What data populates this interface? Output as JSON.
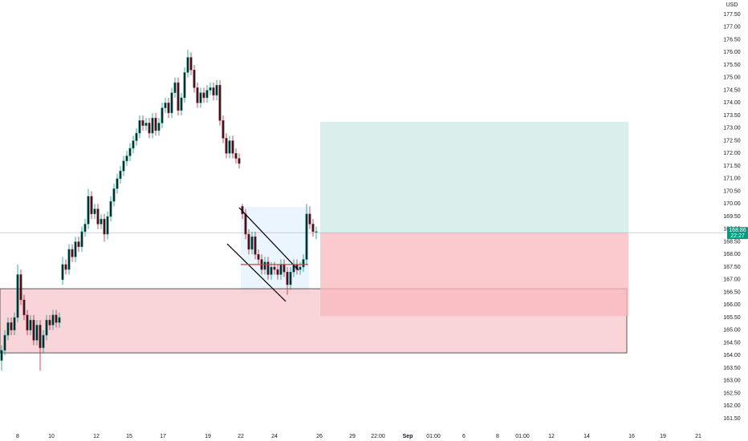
{
  "chart_data": {
    "type": "candlestick",
    "currency": "USD",
    "current_price": 168.86,
    "countdown": "22:27",
    "up_color": "#089981",
    "down_color": "#b22833",
    "xlim": [
      -0.5,
      223.5
    ],
    "ylim": [
      161.25,
      177.75
    ],
    "xticks": [
      {
        "value": 5,
        "label": "8"
      },
      {
        "value": 15.5,
        "label": "10"
      },
      {
        "value": 29.5,
        "label": "12"
      },
      {
        "value": 39.75,
        "label": "15"
      },
      {
        "value": 50.25,
        "label": "17"
      },
      {
        "value": 64.25,
        "label": "19"
      },
      {
        "value": 74.5,
        "label": "22"
      },
      {
        "value": 85,
        "label": "24"
      },
      {
        "value": 99,
        "label": "26"
      },
      {
        "value": 109.25,
        "label": "29"
      },
      {
        "value": 117.25,
        "label": "22:00"
      },
      {
        "value": 126.5,
        "label": "Sep"
      },
      {
        "value": 134.5,
        "label": "01:00"
      },
      {
        "value": 144,
        "label": "6"
      },
      {
        "value": 154.5,
        "label": "8"
      },
      {
        "value": 162.25,
        "label": "01:00"
      },
      {
        "value": 171.25,
        "label": "12"
      },
      {
        "value": 182.25,
        "label": "14"
      },
      {
        "value": 196.25,
        "label": "16"
      },
      {
        "value": 206,
        "label": "19"
      },
      {
        "value": 217,
        "label": "21"
      }
    ],
    "yticks": [
      {
        "value": 161.5,
        "label": "161.50"
      },
      {
        "value": 162,
        "label": "162.00"
      },
      {
        "value": 162.5,
        "label": "162.50"
      },
      {
        "value": 163,
        "label": "163.00"
      },
      {
        "value": 163.5,
        "label": "163.50"
      },
      {
        "value": 164,
        "label": "164.00"
      },
      {
        "value": 164.5,
        "label": "164.50"
      },
      {
        "value": 165,
        "label": "165.00"
      },
      {
        "value": 165.5,
        "label": "165.50"
      },
      {
        "value": 166,
        "label": "166.00"
      },
      {
        "value": 166.5,
        "label": "166.50"
      },
      {
        "value": 167,
        "label": "167.00"
      },
      {
        "value": 167.5,
        "label": "167.50"
      },
      {
        "value": 168,
        "label": "168.00"
      },
      {
        "value": 168.5,
        "label": "168.50"
      },
      {
        "value": 169,
        "label": "169.00"
      },
      {
        "value": 169.5,
        "label": "169.50"
      },
      {
        "value": 170,
        "label": "170.00"
      },
      {
        "value": 170.5,
        "label": "170.50"
      },
      {
        "value": 171,
        "label": "171.00"
      },
      {
        "value": 171.5,
        "label": "171.50"
      },
      {
        "value": 172,
        "label": "172.00"
      },
      {
        "value": 172.5,
        "label": "172.50"
      },
      {
        "value": 173,
        "label": "173.00"
      },
      {
        "value": 173.5,
        "label": "173.50"
      },
      {
        "value": 174,
        "label": "174.00"
      },
      {
        "value": 174.5,
        "label": "174.50"
      },
      {
        "value": 175,
        "label": "175.00"
      },
      {
        "value": 175.5,
        "label": "175.50"
      },
      {
        "value": 176,
        "label": "176.00"
      },
      {
        "value": 176.5,
        "label": "176.50"
      },
      {
        "value": 177,
        "label": "177.00"
      },
      {
        "value": 177.5,
        "label": "177.50"
      }
    ],
    "open": [
      163.8,
      164.2,
      164.8,
      165.3,
      165.0,
      165.5,
      167.2,
      166.2,
      165.6,
      165.0,
      165.4,
      164.6,
      165.2,
      164.3,
      164.8,
      165.4,
      165.2,
      165.6,
      165.3,
      167.0,
      167.6,
      167.4,
      168.2,
      167.9,
      168.5,
      168.3,
      168.9,
      169.2,
      170.3,
      169.6,
      169.8,
      169.2,
      169.4,
      168.8,
      169.5,
      170.1,
      170.6,
      171.0,
      171.3,
      171.7,
      171.9,
      172.2,
      172.5,
      172.8,
      173.3,
      173.1,
      173.2,
      172.8,
      173.4,
      172.9,
      173.2,
      173.8,
      174.0,
      173.6,
      174.4,
      174.8,
      173.7,
      174.2,
      175.2,
      175.8,
      175.3,
      174.6,
      174.0,
      174.4,
      174.2,
      174.5,
      174.6,
      174.3,
      174.7,
      173.3,
      172.6,
      172.0,
      172.5,
      172.0,
      171.8,
      169.9,
      169.6,
      168.8,
      168.2,
      168.7,
      168.0,
      167.8,
      167.4,
      167.7,
      167.2,
      167.5,
      167.4,
      167.2,
      167.6,
      167.3,
      166.8,
      167.3,
      167.6,
      167.4,
      167.5,
      167.8,
      169.6,
      169.2,
      168.9
    ],
    "high": [
      164.4,
      165.0,
      165.5,
      165.5,
      165.7,
      167.6,
      167.4,
      166.4,
      165.8,
      165.6,
      165.6,
      165.4,
      165.4,
      165.0,
      165.6,
      165.6,
      165.8,
      165.8,
      165.7,
      167.9,
      167.8,
      168.4,
      168.4,
      168.7,
      168.7,
      169.1,
      169.4,
      170.6,
      170.5,
      170.0,
      170.0,
      169.6,
      169.6,
      169.7,
      170.3,
      170.8,
      171.2,
      171.5,
      171.9,
      172.1,
      172.4,
      172.7,
      173.0,
      173.5,
      173.5,
      173.4,
      173.4,
      173.6,
      173.6,
      173.4,
      174.0,
      174.2,
      174.2,
      174.6,
      175.0,
      175.0,
      174.4,
      175.4,
      176.1,
      176.0,
      175.5,
      174.8,
      174.6,
      174.6,
      174.7,
      174.8,
      174.8,
      174.9,
      174.9,
      173.5,
      172.8,
      172.7,
      172.7,
      172.2,
      172.0,
      170.0,
      169.8,
      169.0,
      168.9,
      168.9,
      168.2,
      168.0,
      167.9,
      167.9,
      167.7,
      167.7,
      167.6,
      167.8,
      167.8,
      167.5,
      167.5,
      167.8,
      167.8,
      167.7,
      168.0,
      170.0,
      169.9,
      169.4,
      169.1
    ],
    "low": [
      163.4,
      164.0,
      164.6,
      164.8,
      164.8,
      165.3,
      166.0,
      165.4,
      164.8,
      164.8,
      164.4,
      164.4,
      163.4,
      164.1,
      164.6,
      165.0,
      165.0,
      165.1,
      165.1,
      166.8,
      167.2,
      167.2,
      167.7,
      167.7,
      168.1,
      168.1,
      168.7,
      169.0,
      169.4,
      169.4,
      169.0,
      169.0,
      168.5,
      168.6,
      169.3,
      169.9,
      170.4,
      170.8,
      171.1,
      171.5,
      171.7,
      172.0,
      172.3,
      172.6,
      172.9,
      172.9,
      172.6,
      172.6,
      172.7,
      172.7,
      173.0,
      173.6,
      173.4,
      173.4,
      174.2,
      173.5,
      173.5,
      174.0,
      175.0,
      175.1,
      174.4,
      173.8,
      173.8,
      174.0,
      174.0,
      174.3,
      174.1,
      174.1,
      173.1,
      172.4,
      171.8,
      171.8,
      171.8,
      171.6,
      171.4,
      169.4,
      168.6,
      168.0,
      168.0,
      167.8,
      167.6,
      167.2,
      167.2,
      167.0,
      167.0,
      167.2,
      167.0,
      167.0,
      167.1,
      166.4,
      166.6,
      167.1,
      167.2,
      167.2,
      167.3,
      167.6,
      169.0,
      168.7,
      168.6
    ],
    "close": [
      164.2,
      164.8,
      165.3,
      165.0,
      165.5,
      167.2,
      166.2,
      165.6,
      165.0,
      165.4,
      164.6,
      165.2,
      164.3,
      164.8,
      165.4,
      165.2,
      165.6,
      165.3,
      165.5,
      167.6,
      167.4,
      168.2,
      167.9,
      168.5,
      168.3,
      168.9,
      169.2,
      170.3,
      169.6,
      169.8,
      169.2,
      169.4,
      168.8,
      169.5,
      170.1,
      170.6,
      171.0,
      171.3,
      171.7,
      171.9,
      172.2,
      172.5,
      172.8,
      173.3,
      173.1,
      173.2,
      172.8,
      173.4,
      172.9,
      173.2,
      173.8,
      174.0,
      173.6,
      174.4,
      174.8,
      173.7,
      174.2,
      175.2,
      175.8,
      175.3,
      174.6,
      174.0,
      174.4,
      174.2,
      174.5,
      174.6,
      174.3,
      174.7,
      173.3,
      172.6,
      172.0,
      172.5,
      172.0,
      171.8,
      171.6,
      169.6,
      168.8,
      168.2,
      168.7,
      168.0,
      167.8,
      167.4,
      167.7,
      167.2,
      167.5,
      167.4,
      167.2,
      167.6,
      167.3,
      166.8,
      167.3,
      167.6,
      167.4,
      167.5,
      167.8,
      169.6,
      169.2,
      168.9,
      168.9
    ],
    "zones": [
      {
        "x": [
          74.5,
          95.75
        ],
        "y": [
          166.45,
          169.88
        ],
        "color": "#e3f2fd"
      },
      {
        "x": [
          -0.5,
          194.75
        ],
        "y": [
          164.1,
          166.64
        ],
        "color": "#f7c5cb"
      },
      {
        "x": [
          99.25,
          195.25
        ],
        "y": [
          168.86,
          173.25
        ],
        "color": "#cdeae5"
      },
      {
        "x": [
          99.25,
          195.25
        ],
        "y": [
          165.56,
          168.86
        ],
        "color": "#f9b8bd"
      }
    ],
    "lines": [
      {
        "x": [
          74,
          92.5
        ],
        "y": [
          169.85,
          167.37
        ],
        "color": "#000000"
      },
      {
        "x": [
          70.25,
          88.5
        ],
        "y": [
          168.42,
          166.14
        ],
        "color": "#000000"
      },
      {
        "x": [
          74.5,
          95.5
        ],
        "y": [
          167.6,
          167.6
        ],
        "color": "#e53935"
      }
    ]
  }
}
